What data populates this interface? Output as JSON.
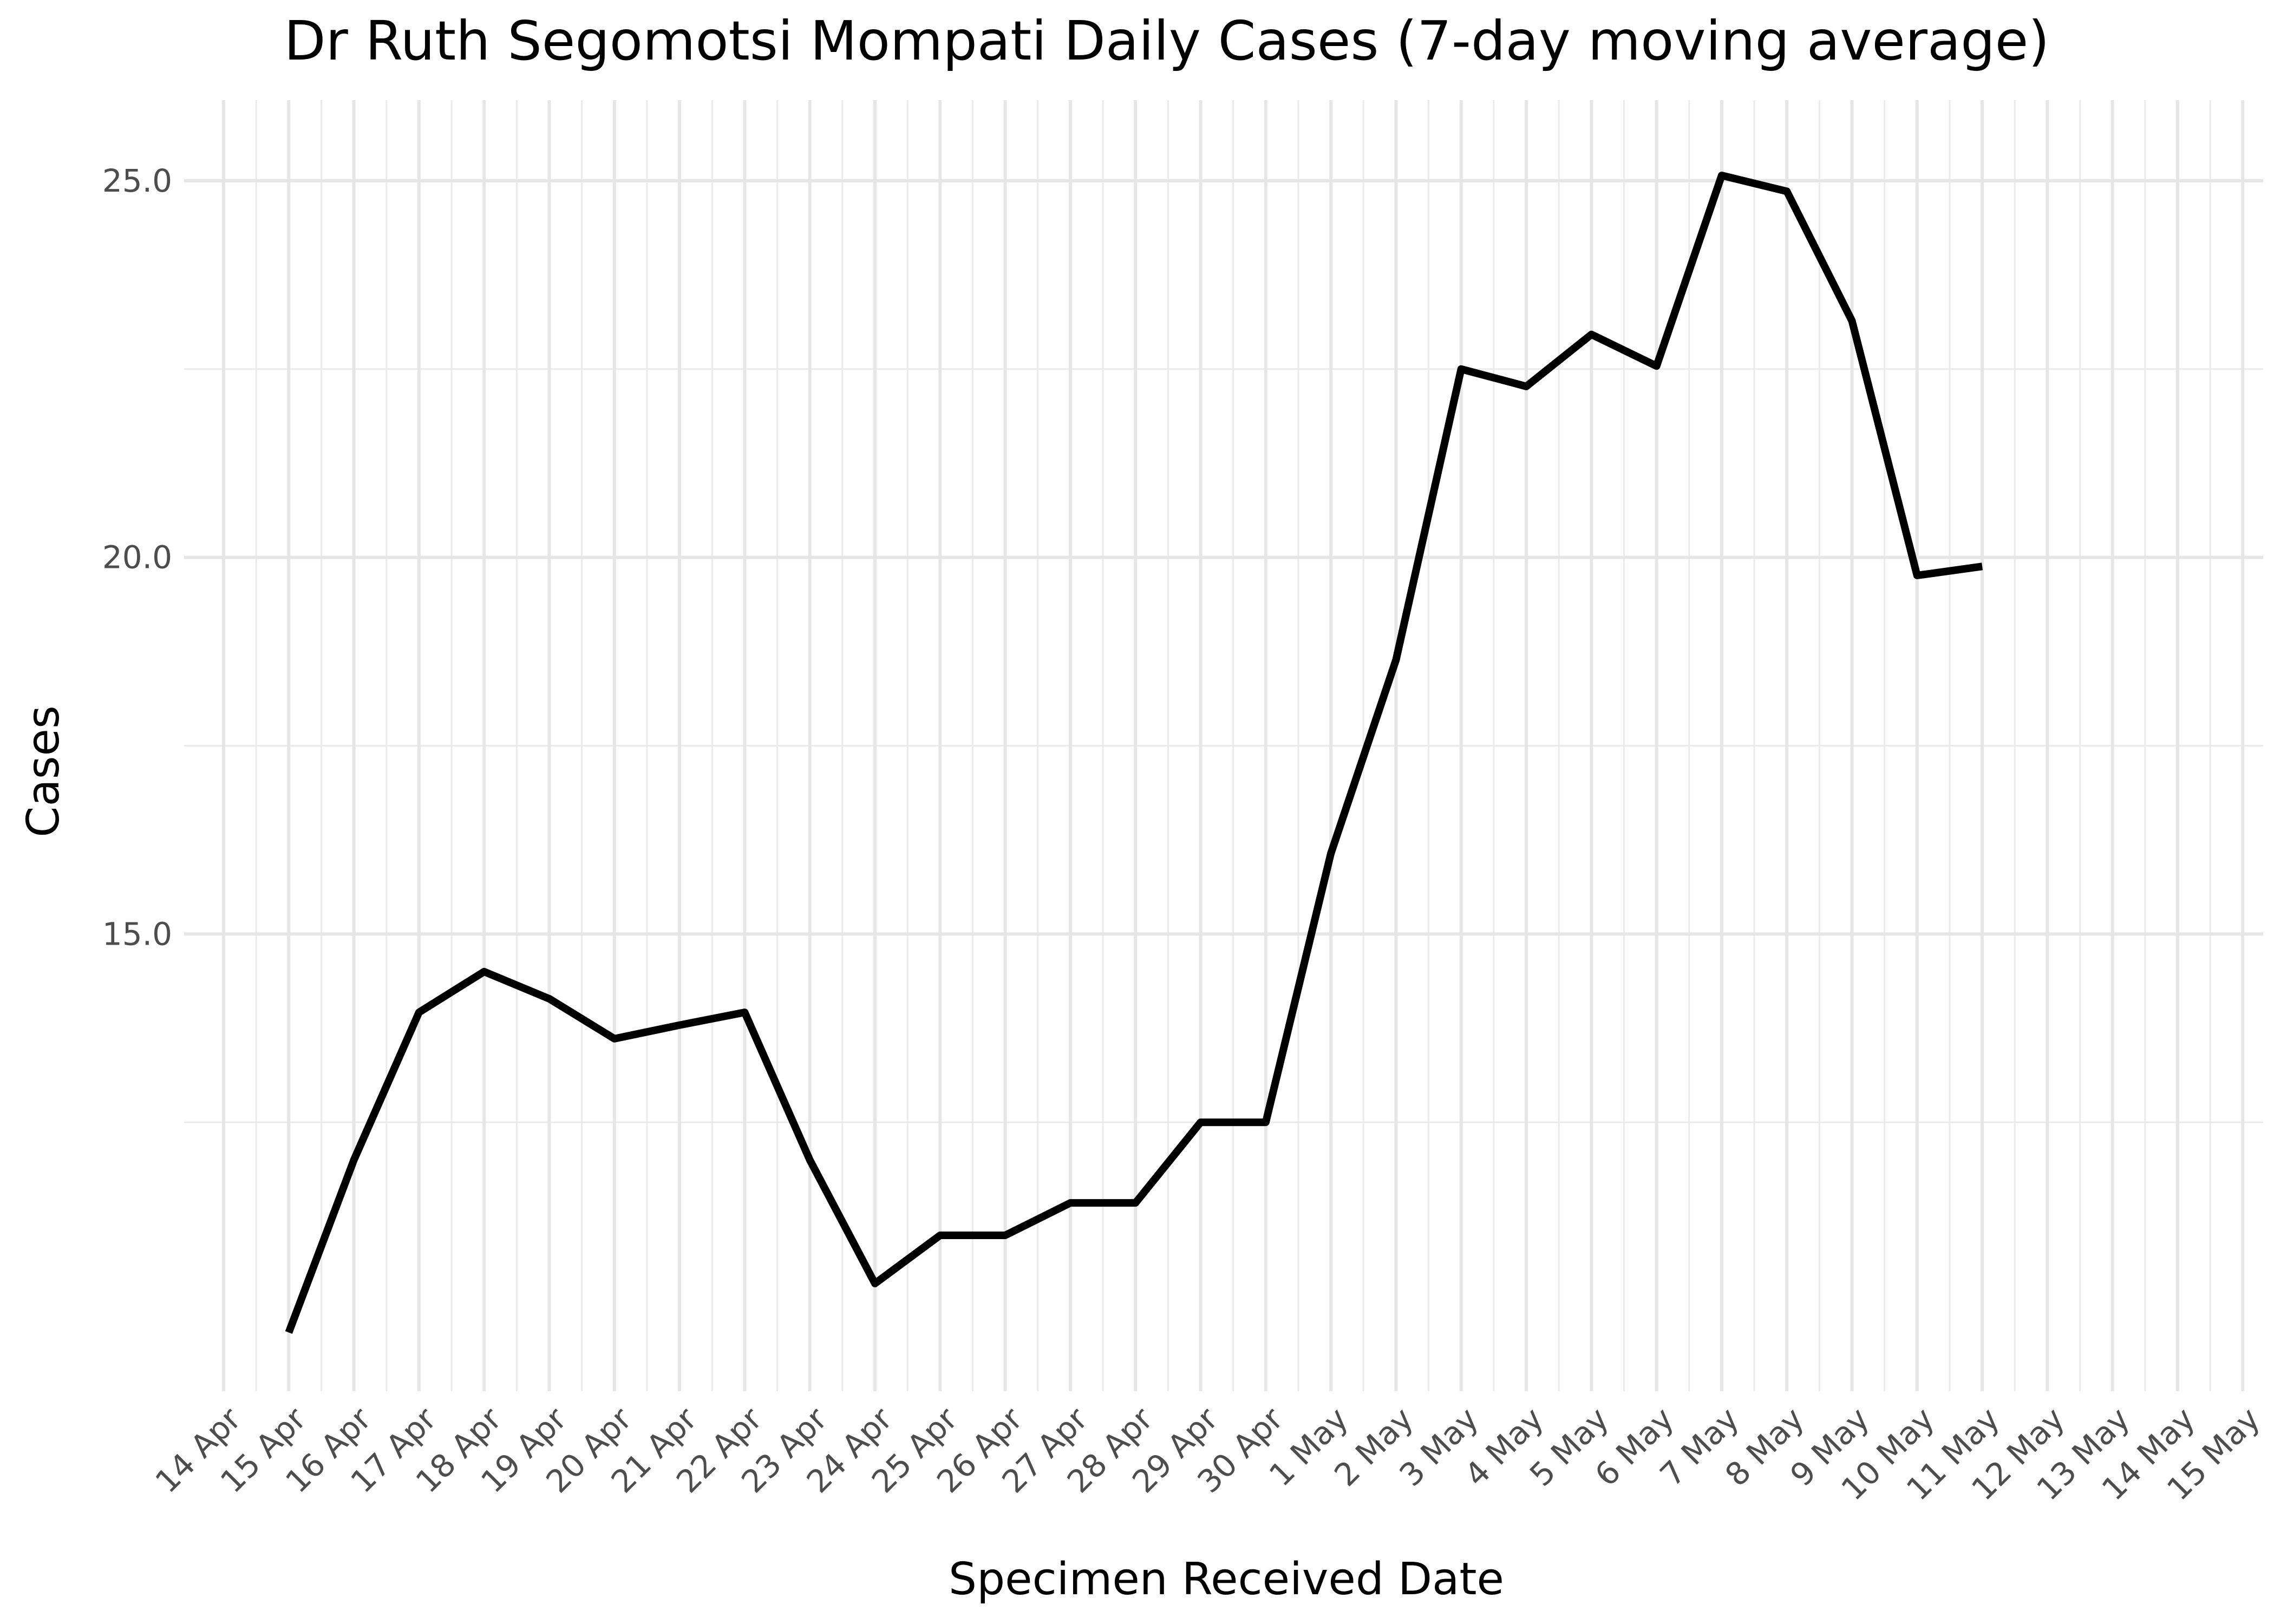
{
  "chart_data": {
    "type": "line",
    "title": "Dr Ruth Segomotsi Mompati Daily Cases (7-day moving average)",
    "xlabel": "Specimen Received Date",
    "ylabel": "Cases",
    "x_ticks": [
      "14 Apr",
      "15 Apr",
      "16 Apr",
      "17 Apr",
      "18 Apr",
      "19 Apr",
      "20 Apr",
      "21 Apr",
      "22 Apr",
      "23 Apr",
      "24 Apr",
      "25 Apr",
      "26 Apr",
      "27 Apr",
      "28 Apr",
      "29 Apr",
      "30 Apr",
      "1 May",
      "2 May",
      "3 May",
      "4 May",
      "5 May",
      "6 May",
      "7 May",
      "8 May",
      "9 May",
      "10 May",
      "11 May",
      "12 May",
      "13 May",
      "14 May",
      "15 May"
    ],
    "y_ticks": [
      "15.0",
      "20.0",
      "25.0"
    ],
    "xlim": [
      "14 Apr",
      "15 May"
    ],
    "ylim": [
      8.93,
      26.07
    ],
    "grid": true,
    "series": [
      {
        "color": "#000000",
        "x": [
          "15 Apr",
          "16 Apr",
          "17 Apr",
          "18 Apr",
          "19 Apr",
          "20 Apr",
          "21 Apr",
          "22 Apr",
          "23 Apr",
          "24 Apr",
          "25 Apr",
          "26 Apr",
          "27 Apr",
          "28 Apr",
          "29 Apr",
          "30 Apr",
          "1 May",
          "2 May",
          "3 May",
          "4 May",
          "5 May",
          "6 May",
          "7 May",
          "8 May",
          "9 May",
          "10 May",
          "11 May"
        ],
        "values": [
          9.71,
          12.0,
          13.96,
          14.5,
          14.14,
          13.61,
          13.79,
          13.96,
          12.0,
          10.36,
          11.0,
          11.0,
          11.43,
          11.43,
          12.5,
          12.5,
          16.07,
          18.64,
          22.5,
          22.27,
          22.96,
          22.54,
          25.07,
          24.86,
          23.14,
          19.76,
          19.88
        ]
      }
    ]
  }
}
